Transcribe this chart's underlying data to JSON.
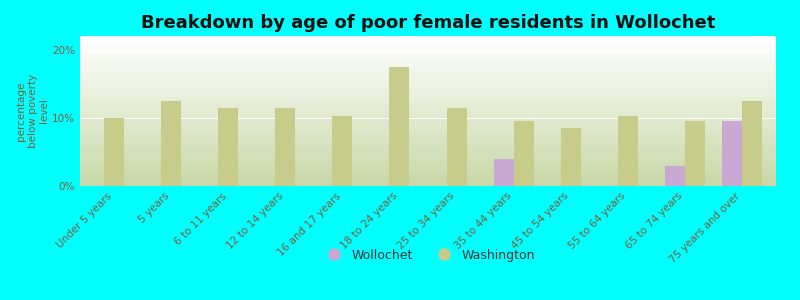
{
  "title": "Breakdown by age of poor female residents in Wollochet",
  "ylabel": "percentage\nbelow poverty\nlevel",
  "categories": [
    "Under 5 years",
    "5 years",
    "6 to 11 years",
    "12 to 14 years",
    "16 and 17 years",
    "18 to 24 years",
    "25 to 34 years",
    "35 to 44 years",
    "45 to 54 years",
    "55 to 64 years",
    "65 to 74 years",
    "75 years and over"
  ],
  "wollochet": [
    0,
    0,
    0,
    0,
    0,
    0,
    0,
    4.0,
    0,
    0,
    3.0,
    9.5
  ],
  "washington": [
    10.0,
    12.5,
    11.5,
    11.5,
    10.3,
    17.5,
    11.5,
    9.5,
    8.5,
    10.3,
    9.5,
    12.5
  ],
  "wollochet_color": "#c9a8d4",
  "washington_color": "#c8cc8a",
  "background_color": "#00ffff",
  "ylim": [
    0,
    22
  ],
  "yticks": [
    0,
    10,
    20
  ],
  "ytick_labels": [
    "0%",
    "10%",
    "20%"
  ],
  "title_fontsize": 13,
  "label_fontsize": 7.5,
  "bar_width": 0.35
}
